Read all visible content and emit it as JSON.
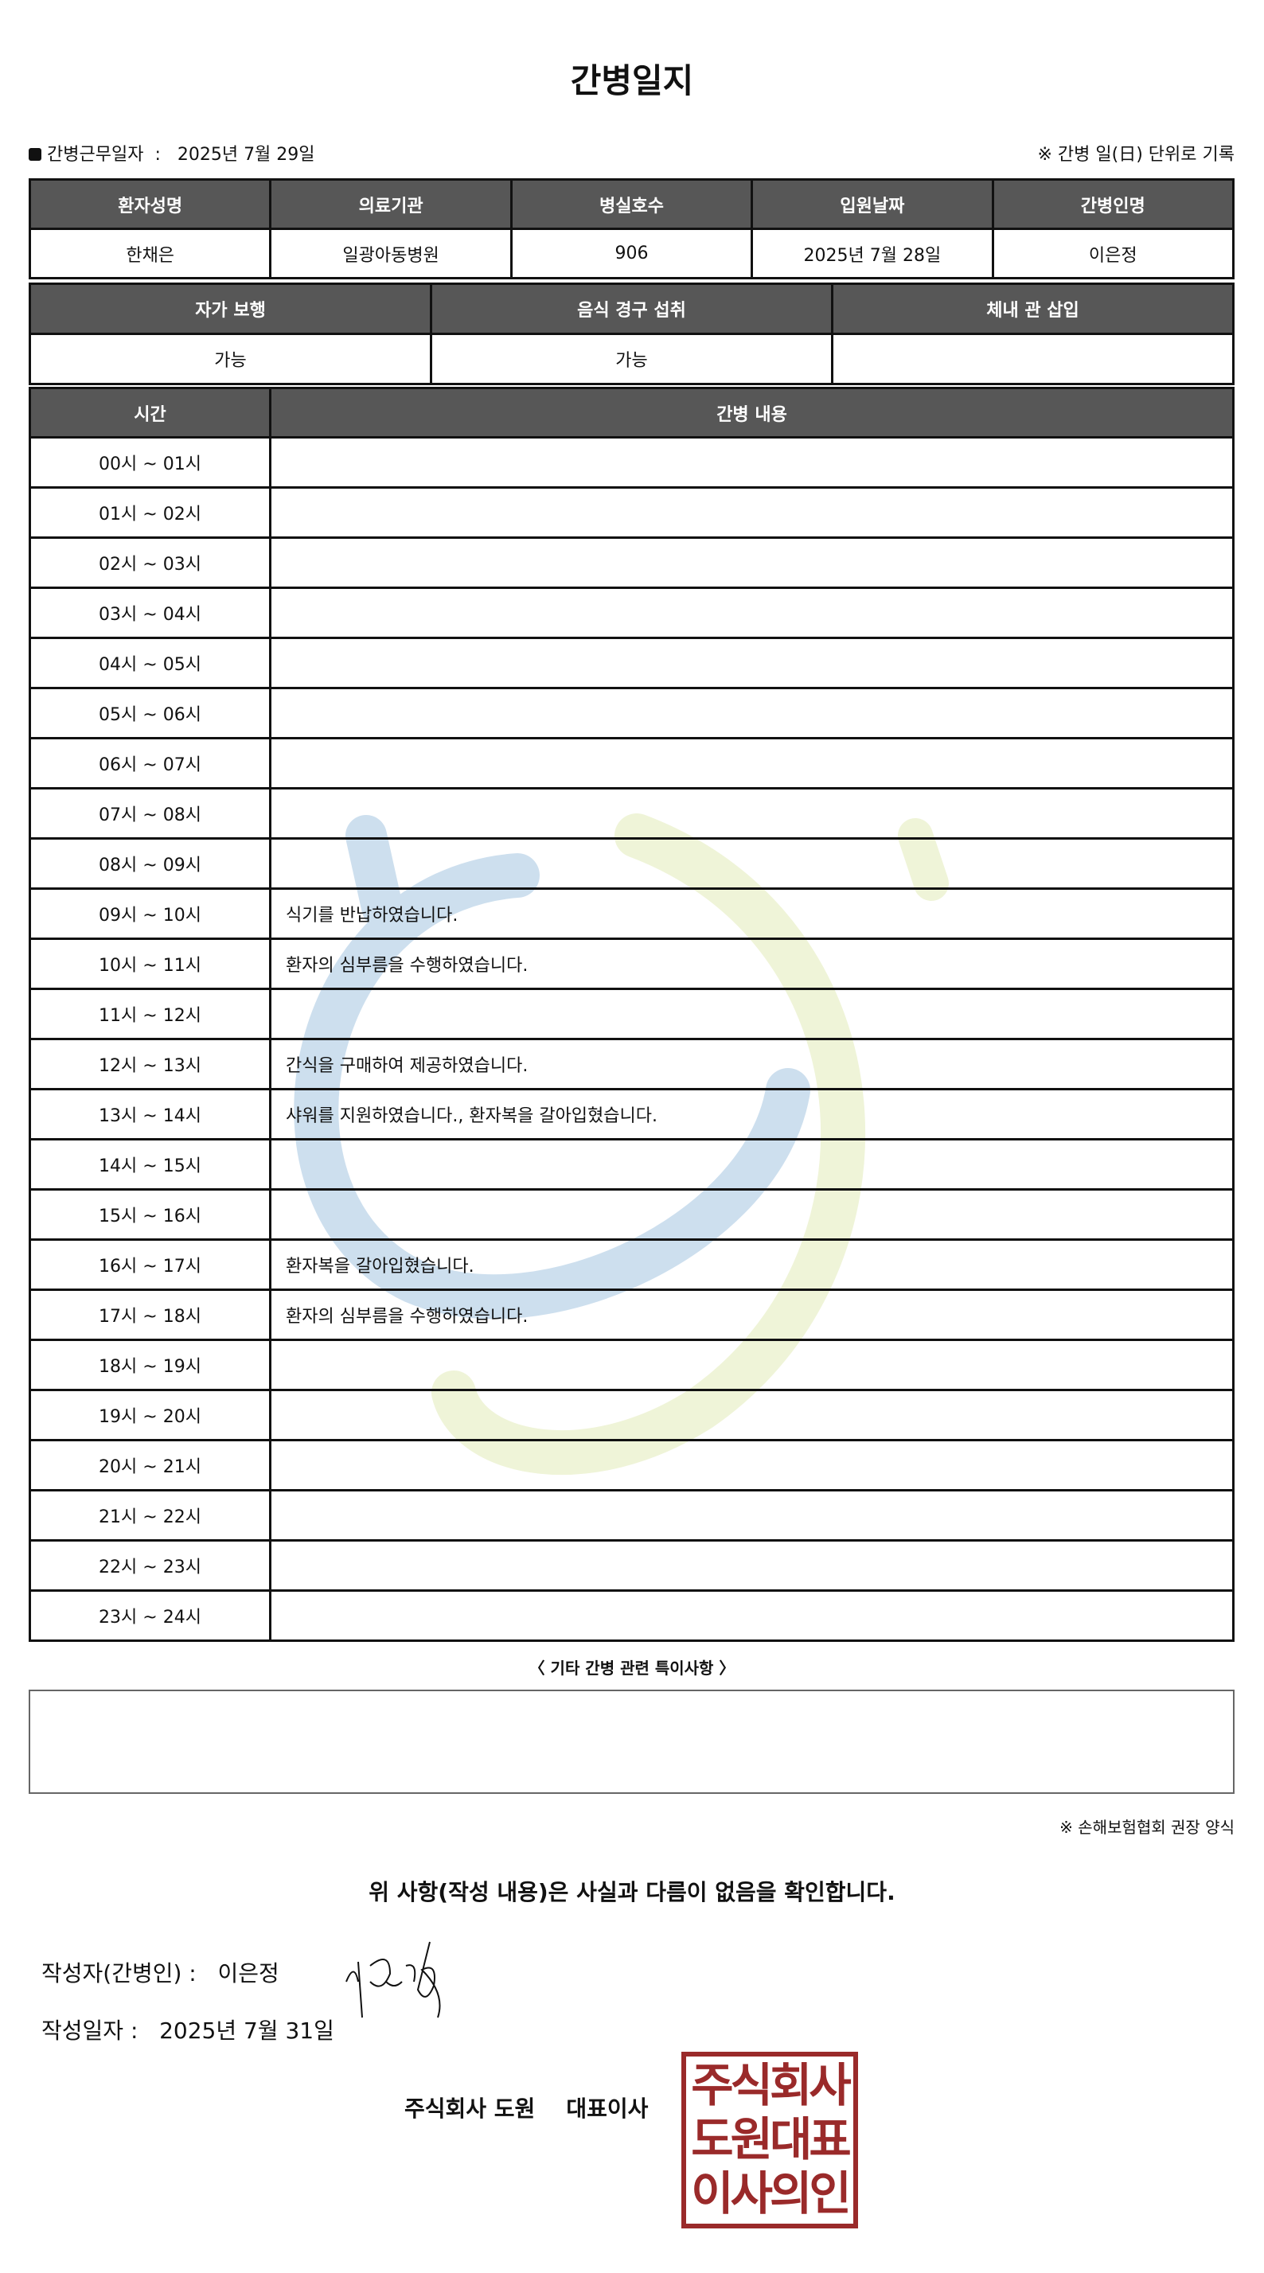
{
  "title": "간병일지",
  "work_date_label": "간병근무일자",
  "work_date": "2025년 7월 29일",
  "note_right": "※ 간병 일(日) 단위로 기록",
  "info": {
    "headers": [
      "환자성명",
      "의료기관",
      "병실호수",
      "입원날짜",
      "간병인명"
    ],
    "values": [
      "한채은",
      "일광아동병원",
      "906",
      "2025년 7월 28일",
      "이은정"
    ]
  },
  "status": {
    "headers": [
      "자가 보행",
      "음식 경구 섭취",
      "체내 관 삽입"
    ],
    "values": [
      "가능",
      "가능",
      ""
    ]
  },
  "log": {
    "headers": [
      "시간",
      "간병 내용"
    ],
    "rows": [
      {
        "time": "00시 ~ 01시",
        "content": ""
      },
      {
        "time": "01시 ~ 02시",
        "content": ""
      },
      {
        "time": "02시 ~ 03시",
        "content": ""
      },
      {
        "time": "03시 ~ 04시",
        "content": ""
      },
      {
        "time": "04시 ~ 05시",
        "content": ""
      },
      {
        "time": "05시 ~ 06시",
        "content": ""
      },
      {
        "time": "06시 ~ 07시",
        "content": ""
      },
      {
        "time": "07시 ~ 08시",
        "content": ""
      },
      {
        "time": "08시 ~ 09시",
        "content": ""
      },
      {
        "time": "09시 ~ 10시",
        "content": "식기를 반납하였습니다."
      },
      {
        "time": "10시 ~ 11시",
        "content": "환자의 심부름을 수행하였습니다."
      },
      {
        "time": "11시 ~ 12시",
        "content": ""
      },
      {
        "time": "12시 ~ 13시",
        "content": "간식을 구매하여 제공하였습니다."
      },
      {
        "time": "13시 ~ 14시",
        "content": "샤워를 지원하였습니다., 환자복을 갈아입혔습니다."
      },
      {
        "time": "14시 ~ 15시",
        "content": ""
      },
      {
        "time": "15시 ~ 16시",
        "content": ""
      },
      {
        "time": "16시 ~ 17시",
        "content": "환자복을 갈아입혔습니다."
      },
      {
        "time": "17시 ~ 18시",
        "content": "환자의 심부름을 수행하였습니다."
      },
      {
        "time": "18시 ~ 19시",
        "content": ""
      },
      {
        "time": "19시 ~ 20시",
        "content": ""
      },
      {
        "time": "20시 ~ 21시",
        "content": ""
      },
      {
        "time": "21시 ~ 22시",
        "content": ""
      },
      {
        "time": "22시 ~ 23시",
        "content": ""
      },
      {
        "time": "23시 ~ 24시",
        "content": ""
      }
    ]
  },
  "special_title": "〈 기타 간병 관련 특이사항 〉",
  "special_notes": "",
  "form_note": "※ 손해보험협회 권장 양식",
  "confirm": "위 사항(작성 내용)은 사실과 다름이 없음을 확인합니다.",
  "writer_label": "작성자(간병인) :",
  "writer": "이은정",
  "written_date_label": "작성일자 :",
  "written_date": "2025년 7월 31일",
  "company": "주식회사 도원",
  "ceo": "대표이사",
  "stamp_text": "주식회사 도원대표 이사의인",
  "colors": {
    "header_bg": "#575757",
    "stamp": "#9a2a2a",
    "watermark_blue": "#c8dced",
    "watermark_green": "#eef3d4"
  }
}
